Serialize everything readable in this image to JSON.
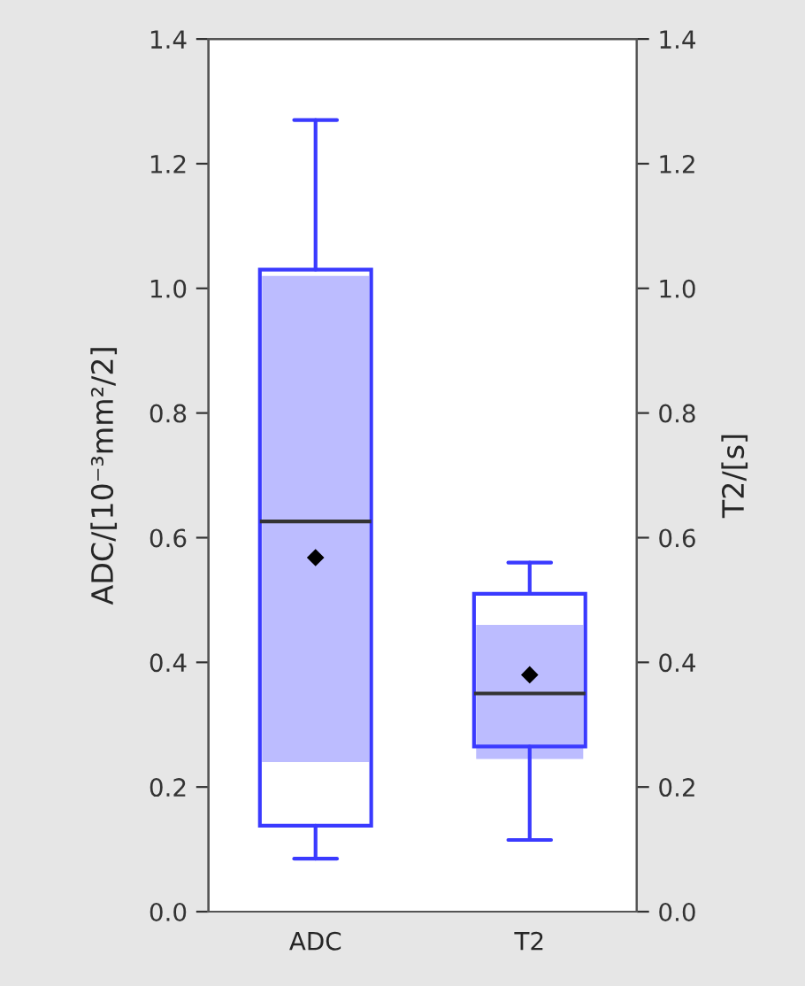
{
  "chart_data": {
    "type": "box",
    "categories": [
      "ADC",
      "T2"
    ],
    "ylabel": "ADC/[10⁻³mm²/2]",
    "y2label": "T2/[s]",
    "ylim": [
      0,
      1.4
    ],
    "yticks": [
      {
        "value": 0,
        "label": "0.0"
      },
      0.2,
      0.4,
      0.6,
      0.8,
      {
        "value": 1,
        "label": "1.0"
      },
      1.2,
      1.4
    ],
    "y2lim": [
      0,
      1.4
    ],
    "y2ticks": [
      {
        "value": 0,
        "label": "0.0"
      },
      0.2,
      0.4,
      0.6,
      0.8,
      {
        "value": 1,
        "label": "1.0"
      },
      1.2,
      1.4
    ],
    "grid": false,
    "series": [
      {
        "type": "bar",
        "color": "#bcbcff",
        "base": [
          0.24,
          0.245
        ],
        "values": [
          0.78,
          0.215
        ]
      },
      {
        "color": "#3a3aff",
        "boxes": [
          {
            "low": 0.085,
            "q1": 0.138,
            "median": 0.626,
            "q3": 1.03,
            "high": 1.27,
            "mean": 0.568
          },
          {
            "low": 0.115,
            "q1": 0.265,
            "median": 0.35,
            "q3": 0.51,
            "high": 0.56,
            "mean": 0.38
          }
        ]
      }
    ]
  }
}
